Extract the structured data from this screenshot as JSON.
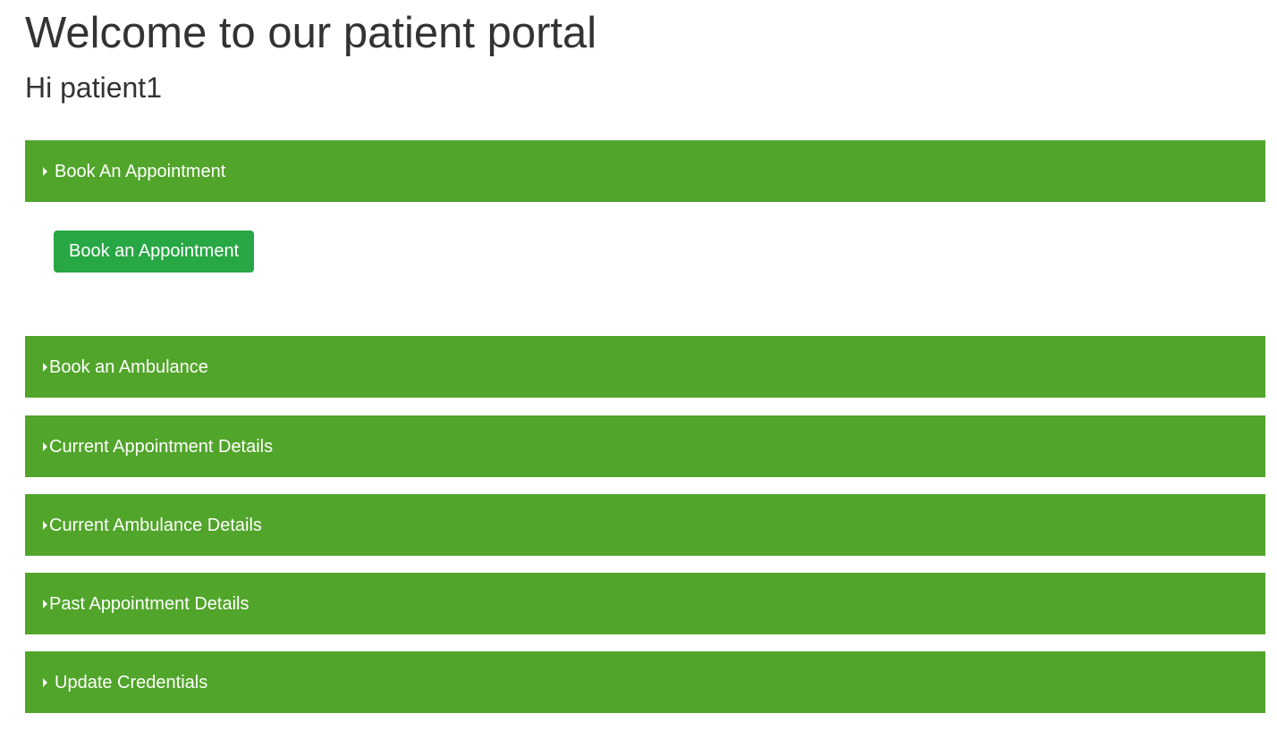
{
  "header": {
    "title": "Welcome to our patient portal",
    "greeting": "Hi patient1"
  },
  "panels": [
    {
      "label": "Book An Appointment",
      "icon": "caret-right-icon",
      "expanded": true
    },
    {
      "label": "Book an Ambulance",
      "icon": "caret-right-icon",
      "expanded": false
    },
    {
      "label": "Current Appointment Details",
      "icon": "caret-right-icon",
      "expanded": false
    },
    {
      "label": "Current Ambulance Details",
      "icon": "caret-right-icon",
      "expanded": false
    },
    {
      "label": "Past Appointment Details",
      "icon": "caret-right-icon",
      "expanded": false
    },
    {
      "label": "Update Credentials",
      "icon": "caret-right-icon",
      "expanded": false
    }
  ],
  "book_appointment_panel": {
    "button_label": "Book an Appointment"
  },
  "colors": {
    "panel_header_bg": "#51a52a",
    "button_bg": "#28a745",
    "text": "#333333"
  }
}
